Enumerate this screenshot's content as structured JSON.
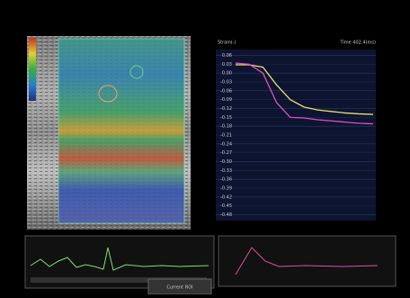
{
  "chart_data": {
    "type": "line",
    "title": "Strain(-)",
    "subtitle": "Time 402.4(ms)",
    "x": [
      0,
      40,
      80,
      120,
      160,
      200,
      240,
      280,
      320,
      360,
      402.4
    ],
    "xlim": [
      0,
      402.4
    ],
    "ylim": [
      -0.5,
      0.08
    ],
    "yticks": [
      0.06,
      0.03,
      {
        "value": 0,
        "label": "0.00"
      },
      -0.03,
      -0.06,
      -0.09,
      -0.12,
      -0.15,
      -0.18,
      -0.21,
      -0.24,
      -0.27,
      {
        "value": -0.3,
        "label": "-0.30"
      },
      -0.33,
      -0.36,
      -0.39,
      -0.42,
      -0.45,
      -0.48
    ],
    "series": [
      {
        "color": "#e8e070",
        "values": [
          0.028,
          0.028,
          0.02,
          -0.04,
          -0.09,
          -0.115,
          -0.125,
          -0.13,
          -0.135,
          -0.138,
          -0.14
        ]
      },
      {
        "color": "#e050c0",
        "values": [
          0.034,
          0.03,
          0.0,
          -0.1,
          -0.15,
          -0.152,
          -0.158,
          -0.162,
          -0.166,
          -0.17,
          -0.172
        ]
      }
    ],
    "button": "Current ROI"
  }
}
